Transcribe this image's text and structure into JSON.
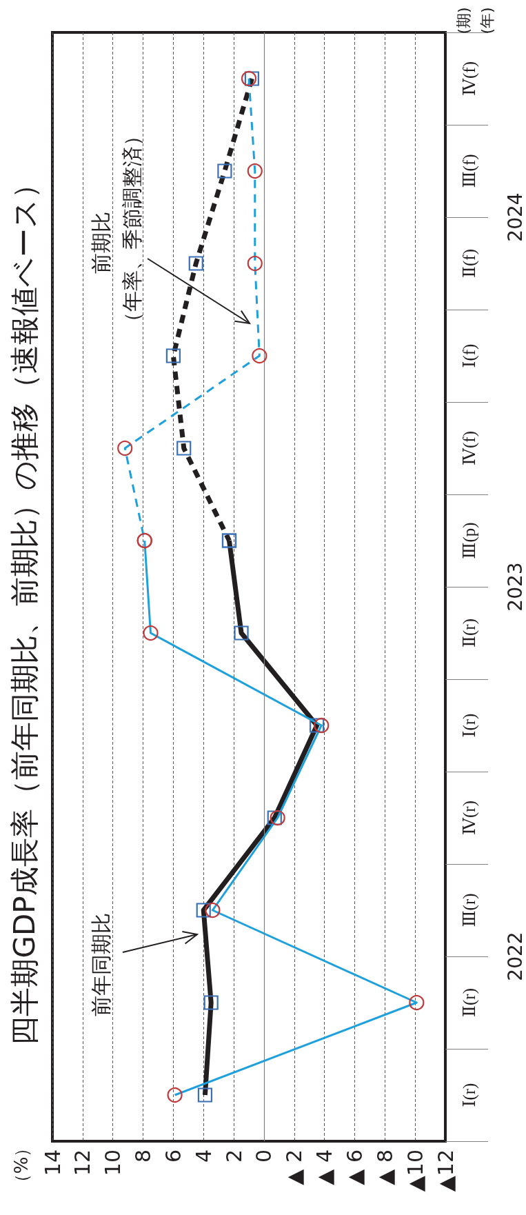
{
  "chart_data": {
    "type": "line",
    "orientation": "horizontal",
    "title": "四半期GDP成長率（前年同期比、前期比）の推移（速報値ベース）",
    "ylabel": "(期)",
    "categories": [
      "Ⅳ(f)",
      "Ⅲ(f)",
      "Ⅱ(f)",
      "Ⅰ(f)",
      "Ⅳ(f)",
      "Ⅲ(p)",
      "Ⅱ(r)",
      "Ⅰ(r)",
      "Ⅳ(r)",
      "Ⅲ(r)",
      "Ⅱ(r)",
      "Ⅰ(r)"
    ],
    "series": [
      {
        "color": "#231f20",
        "marker": "square",
        "line_style": "solid",
        "values": [
          null,
          null,
          null,
          null,
          null,
          2.3,
          1.5,
          -3.5,
          -0.7,
          4.0,
          3.5,
          3.9
        ]
      },
      {
        "color": "#231f20",
        "marker": "square",
        "line_style": "dashed",
        "values": [
          0.8,
          2.6,
          4.5,
          6.0,
          5.3,
          2.3,
          null,
          null,
          null,
          null,
          null,
          null
        ]
      },
      {
        "color": "#1ea0dc",
        "marker": "circle",
        "line_style": "solid",
        "values": [
          null,
          null,
          null,
          null,
          null,
          7.9,
          7.5,
          -3.8,
          -0.9,
          3.4,
          -10.1,
          5.9
        ]
      },
      {
        "color": "#1ea0dc",
        "marker": "circle",
        "line_style": "dashed",
        "values": [
          1.0,
          0.6,
          0.6,
          0.3,
          9.2,
          7.9,
          null,
          null,
          null,
          null,
          null,
          null
        ]
      }
    ],
    "xlim": [
      14,
      -12
    ],
    "xticks": [
      14,
      12,
      10,
      8,
      6,
      4,
      2,
      0,
      {
        "value": -2,
        "label": "▲ 2"
      },
      {
        "value": -4,
        "label": "▲ 4"
      },
      {
        "value": -6,
        "label": "▲ 6"
      },
      {
        "value": -8,
        "label": "▲ 8"
      },
      {
        "value": -10,
        "label": "▲10"
      },
      {
        "value": -12,
        "label": "▲12"
      }
    ],
    "ref_lines": [
      {
        "axis": "x",
        "value": 0,
        "color": "#808080",
        "line_style": "solid"
      }
    ],
    "grid": "x",
    "annotations": [
      "（年率、季節調整済）",
      "2024",
      "2023",
      "2022",
      "(年)",
      "（%）",
      "前年同期比",
      "前期比"
    ]
  }
}
